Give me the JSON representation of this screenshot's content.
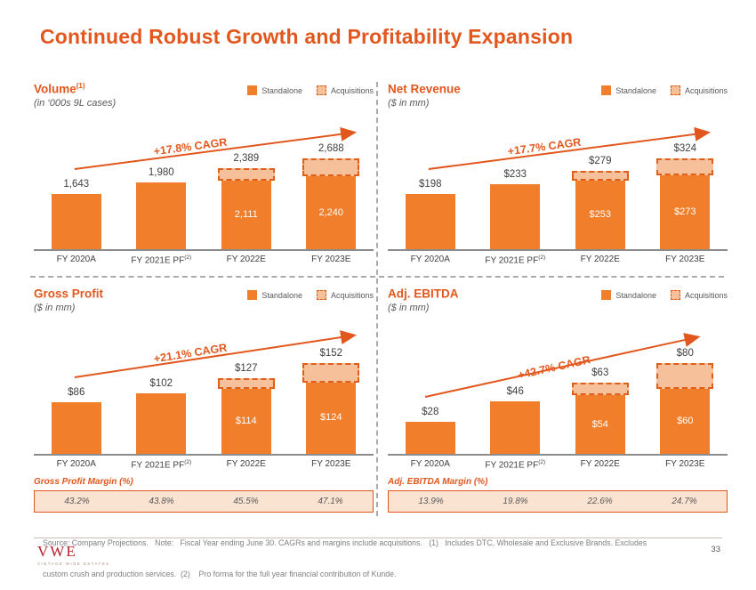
{
  "slide": {
    "title": "Continued Robust Growth and Profitability Expansion",
    "page_number": "33",
    "logo": {
      "text": "VWE",
      "tagline": "VINTAGE WINE ESTATES"
    },
    "footnote_line1": "Source: Company Projections.   Note:   Fiscal Year ending June 30. CAGRs and margins include acquisitions.   (1)   Includes DTC, Wholesale and Exclusive Brands. Excludes",
    "footnote_line2": "custom crush and production services.  (2)    Pro forma for the full year financial contribution of Kunde."
  },
  "legend": {
    "standalone": "Standalone",
    "acquisitions": "Acquisitions"
  },
  "colors": {
    "accent_orange": "#E2571E",
    "bar_standalone": "#F07E2B",
    "bar_acquisitions_fill": "#F5C09A",
    "bar_acquisitions_border": "#DD5F1A",
    "margin_box_bg": "#FBE3D2",
    "logo_red": "#B42025"
  },
  "chart_data": [
    {
      "id": "volume",
      "type": "bar",
      "title": "Volume",
      "title_sup": "(1)",
      "subtitle": "(in ‘000s 9L cases)",
      "cagr": "+17.8% CAGR",
      "legend_position": "top-right",
      "categories": [
        {
          "label": "FY 2020A",
          "sup": ""
        },
        {
          "label": "FY 2021E PF",
          "sup": "(2)"
        },
        {
          "label": "FY 2022E",
          "sup": ""
        },
        {
          "label": "FY 2023E",
          "sup": ""
        }
      ],
      "series": [
        {
          "name": "Standalone",
          "values": [
            1643,
            1980,
            2111,
            2240
          ]
        },
        {
          "name": "Acquisitions",
          "values": [
            0,
            0,
            278,
            448
          ]
        }
      ],
      "totals": [
        1643,
        1980,
        2389,
        2688
      ],
      "totals_display": [
        "1,643",
        "1,980",
        "2,389",
        "2,688"
      ],
      "standalone_display": [
        null,
        null,
        "2,111",
        "2,240"
      ]
    },
    {
      "id": "net_revenue",
      "type": "bar",
      "title": "Net Revenue",
      "title_sup": "",
      "subtitle": "($ in mm)",
      "cagr": "+17.7% CAGR",
      "legend_position": "top-right",
      "categories": [
        {
          "label": "FY 2020A",
          "sup": ""
        },
        {
          "label": "FY 2021E PF",
          "sup": "(2)"
        },
        {
          "label": "FY 2022E",
          "sup": ""
        },
        {
          "label": "FY 2023E",
          "sup": ""
        }
      ],
      "series": [
        {
          "name": "Standalone",
          "values": [
            198,
            233,
            253,
            273
          ]
        },
        {
          "name": "Acquisitions",
          "values": [
            0,
            0,
            26,
            51
          ]
        }
      ],
      "totals": [
        198,
        233,
        279,
        324
      ],
      "totals_display": [
        "$198",
        "$233",
        "$279",
        "$324"
      ],
      "standalone_display": [
        null,
        null,
        "$253",
        "$273"
      ]
    },
    {
      "id": "gross_profit",
      "type": "bar",
      "title": "Gross Profit",
      "title_sup": "",
      "subtitle": "($ in mm)",
      "cagr": "+21.1% CAGR",
      "legend_position": "top-right",
      "categories": [
        {
          "label": "FY 2020A",
          "sup": ""
        },
        {
          "label": "FY 2021E PF",
          "sup": "(2)"
        },
        {
          "label": "FY 2022E",
          "sup": ""
        },
        {
          "label": "FY 2023E",
          "sup": ""
        }
      ],
      "series": [
        {
          "name": "Standalone",
          "values": [
            86,
            102,
            114,
            124
          ]
        },
        {
          "name": "Acquisitions",
          "values": [
            0,
            0,
            13,
            28
          ]
        }
      ],
      "totals": [
        86,
        102,
        127,
        152
      ],
      "totals_display": [
        "$86",
        "$102",
        "$127",
        "$152"
      ],
      "standalone_display": [
        null,
        null,
        "$114",
        "$124"
      ],
      "margin_label": "Gross Profit Margin (%)",
      "margins": [
        "43.2%",
        "43.8%",
        "45.5%",
        "47.1%"
      ]
    },
    {
      "id": "adj_ebitda",
      "type": "bar",
      "title": "Adj. EBITDA",
      "title_sup": "",
      "subtitle": "($ in mm)",
      "cagr": "+42.7% CAGR",
      "legend_position": "top-right",
      "categories": [
        {
          "label": "FY 2020A",
          "sup": ""
        },
        {
          "label": "FY 2021E PF",
          "sup": "(2)"
        },
        {
          "label": "FY 2022E",
          "sup": ""
        },
        {
          "label": "FY 2023E",
          "sup": ""
        }
      ],
      "series": [
        {
          "name": "Standalone",
          "values": [
            28,
            46,
            54,
            60
          ]
        },
        {
          "name": "Acquisitions",
          "values": [
            0,
            0,
            9,
            20
          ]
        }
      ],
      "totals": [
        28,
        46,
        63,
        80
      ],
      "totals_display": [
        "$28",
        "$46",
        "$63",
        "$80"
      ],
      "standalone_display": [
        null,
        null,
        "$54",
        "$60"
      ],
      "margin_label": "Adj. EBITDA Margin (%)",
      "margins": [
        "13.9%",
        "19.8%",
        "22.6%",
        "24.7%"
      ]
    }
  ]
}
